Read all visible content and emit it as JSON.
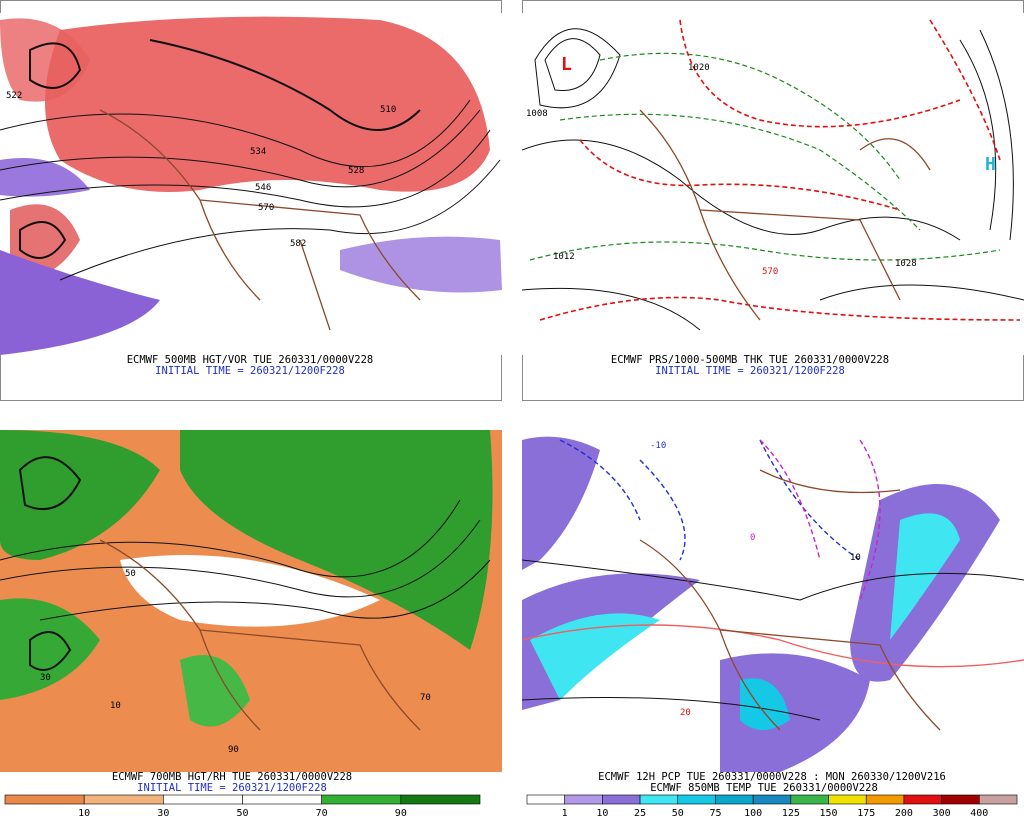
{
  "panels": [
    {
      "caption": "ECMWF 500MB HGT/VOR TUE 260331/0000V228",
      "initial_time": "INITIAL TIME = 260321/1200F228",
      "map_labels": [
        "522",
        "510",
        "528",
        "534",
        "546",
        "570",
        "582"
      ]
    },
    {
      "caption": "ECMWF PRS/1000-500MB THK TUE 260331/0000V228",
      "initial_time": "INITIAL TIME = 260321/1200F228",
      "map_labels": [
        "L",
        "H",
        "1012",
        "1028",
        "1020",
        "570",
        "1008"
      ]
    },
    {
      "caption": "ECMWF 700MB HGT/RH TUE 260331/0000V228",
      "initial_time": "INITIAL TIME = 260321/1200F228",
      "map_labels": [
        "30",
        "50",
        "10",
        "90",
        "70"
      ],
      "colorbar": {
        "colors": [
          "#e8894a",
          "#f2b27c",
          "#ffffff",
          "#ffffff",
          "#33b033",
          "#137a13"
        ],
        "labels": [
          10,
          30,
          50,
          70,
          90
        ]
      }
    },
    {
      "caption": "ECMWF 12H PCP TUE 260331/0000V228 : MON 260330/1200V216",
      "caption2": "ECMWF 850MB TEMP TUE 260331/0000V228",
      "map_labels": [
        "-10",
        "0",
        "10",
        "20"
      ],
      "colorbar": {
        "colors": [
          "#ffffff",
          "#b39ae8",
          "#8a6fd8",
          "#3fe6f2",
          "#15c8e6",
          "#0aa6cc",
          "#1a88c0",
          "#39b54a",
          "#f2e200",
          "#f29a00",
          "#e01010",
          "#a00000",
          "#c8a0a0"
        ],
        "labels": [
          1,
          10,
          25,
          50,
          75,
          100,
          125,
          150,
          175,
          200,
          300,
          400
        ]
      }
    }
  ]
}
